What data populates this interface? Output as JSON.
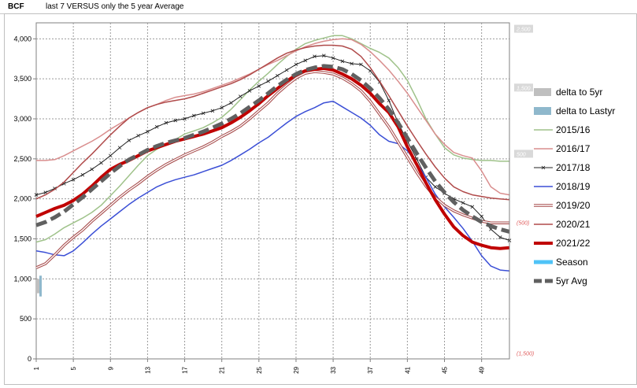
{
  "sheet": {
    "cell_a1": "BCF",
    "cell_b1": "last 7 VERSUS only the 5 year Average"
  },
  "chart_data": {
    "type": "line",
    "y_axis": {
      "ticks": [
        "4,000",
        "3,500",
        "3,000",
        "2,500",
        "2,000",
        "1,500",
        "1,000",
        "500",
        "0"
      ],
      "ylim": [
        0,
        4200
      ]
    },
    "y2_axis": {
      "ticks": [
        "2,500",
        "1,500",
        "500",
        "(500)",
        "(1,500)"
      ]
    },
    "x_axis": {
      "ticks": [
        "1",
        "5",
        "9",
        "13",
        "17",
        "21",
        "25",
        "29",
        "33",
        "37",
        "41",
        "45",
        "49"
      ],
      "xlim": [
        1,
        52
      ]
    },
    "grid": true,
    "legend_position": "right",
    "series": [
      {
        "name": "delta to 5yr",
        "kind": "bar",
        "color": "#bfbfbf",
        "values": [
          [
            1,
            1000
          ],
          [
            1.5,
            1000
          ]
        ]
      },
      {
        "name": "delta to Lastyr",
        "kind": "bar",
        "color": "#8fb8cc",
        "values": [
          [
            1,
            1040
          ],
          [
            1.5,
            780
          ]
        ]
      },
      {
        "name": "2015/16",
        "color": "#9fc28a",
        "width": 1.5,
        "values": [
          1460,
          1490,
          1560,
          1640,
          1700,
          1760,
          1830,
          1920,
          2040,
          2160,
          2290,
          2420,
          2540,
          2620,
          2680,
          2740,
          2810,
          2850,
          2890,
          2950,
          3020,
          3120,
          3240,
          3360,
          3470,
          3570,
          3680,
          3780,
          3870,
          3940,
          3980,
          4010,
          4040,
          4040,
          4000,
          3940,
          3880,
          3830,
          3760,
          3640,
          3480,
          3250,
          3000,
          2810,
          2640,
          2550,
          2510,
          2490,
          2480,
          2480,
          2470,
          2470
        ]
      },
      {
        "name": "2016/17",
        "color": "#d98e8e",
        "width": 1.5,
        "values": [
          2480,
          2480,
          2490,
          2540,
          2600,
          2660,
          2720,
          2790,
          2870,
          2940,
          3010,
          3080,
          3140,
          3180,
          3230,
          3270,
          3290,
          3310,
          3340,
          3380,
          3420,
          3460,
          3510,
          3560,
          3620,
          3680,
          3730,
          3790,
          3850,
          3900,
          3940,
          3970,
          3990,
          4000,
          3990,
          3930,
          3840,
          3730,
          3610,
          3470,
          3320,
          3150,
          2980,
          2810,
          2680,
          2580,
          2540,
          2510,
          2350,
          2150,
          2070,
          2050
        ]
      },
      {
        "name": "2017/18",
        "color": "#202020",
        "width": 1,
        "marker": "x",
        "values": [
          2050,
          2080,
          2130,
          2190,
          2240,
          2300,
          2370,
          2450,
          2540,
          2640,
          2730,
          2790,
          2840,
          2900,
          2950,
          2980,
          3000,
          3040,
          3070,
          3100,
          3140,
          3200,
          3280,
          3350,
          3410,
          3470,
          3540,
          3610,
          3680,
          3730,
          3780,
          3790,
          3760,
          3720,
          3690,
          3680,
          3600,
          3460,
          3230,
          2950,
          2720,
          2500,
          2270,
          2150,
          2070,
          2000,
          1950,
          1900,
          1780,
          1620,
          1520,
          1480
        ]
      },
      {
        "name": "2018/19",
        "color": "#3b4fd6",
        "width": 1.5,
        "values": [
          1350,
          1330,
          1300,
          1290,
          1350,
          1450,
          1560,
          1660,
          1750,
          1840,
          1930,
          2010,
          2080,
          2150,
          2200,
          2240,
          2270,
          2300,
          2340,
          2380,
          2420,
          2480,
          2550,
          2620,
          2700,
          2770,
          2860,
          2950,
          3030,
          3090,
          3140,
          3200,
          3220,
          3150,
          3080,
          3010,
          2920,
          2800,
          2720,
          2690,
          2600,
          2450,
          2270,
          2060,
          1900,
          1770,
          1630,
          1470,
          1290,
          1160,
          1110,
          1100
        ]
      },
      {
        "name": "2019/20",
        "color": "#a54848",
        "width": 1,
        "double": true,
        "values": [
          1140,
          1190,
          1300,
          1420,
          1520,
          1610,
          1720,
          1820,
          1920,
          2020,
          2110,
          2190,
          2280,
          2360,
          2430,
          2490,
          2550,
          2600,
          2650,
          2710,
          2780,
          2840,
          2910,
          3000,
          3100,
          3200,
          3320,
          3420,
          3510,
          3570,
          3590,
          3580,
          3560,
          3510,
          3440,
          3350,
          3220,
          3060,
          2900,
          2710,
          2520,
          2330,
          2160,
          2020,
          1920,
          1850,
          1800,
          1760,
          1720,
          1700,
          1700,
          1700
        ]
      },
      {
        "name": "2020/21",
        "color": "#b04a4a",
        "width": 1.5,
        "values": [
          2000,
          2050,
          2120,
          2210,
          2330,
          2450,
          2560,
          2680,
          2800,
          2910,
          3010,
          3080,
          3140,
          3180,
          3210,
          3230,
          3250,
          3280,
          3320,
          3360,
          3400,
          3440,
          3490,
          3550,
          3620,
          3690,
          3760,
          3820,
          3860,
          3890,
          3910,
          3920,
          3920,
          3910,
          3870,
          3780,
          3640,
          3470,
          3290,
          3100,
          2910,
          2730,
          2560,
          2400,
          2260,
          2150,
          2090,
          2050,
          2030,
          2010,
          2000,
          1990
        ]
      },
      {
        "name": "2021/22",
        "color": "#c00000",
        "width": 4,
        "values": [
          1780,
          1830,
          1880,
          1920,
          1980,
          2060,
          2160,
          2270,
          2370,
          2430,
          2480,
          2540,
          2600,
          2640,
          2680,
          2720,
          2750,
          2780,
          2810,
          2850,
          2890,
          2950,
          3020,
          3100,
          3190,
          3290,
          3380,
          3470,
          3550,
          3600,
          3620,
          3630,
          3610,
          3560,
          3500,
          3420,
          3320,
          3190,
          3080,
          2900,
          2650,
          2430,
          2200,
          1990,
          1810,
          1650,
          1540,
          1460,
          1420,
          1390,
          1380,
          1390
        ]
      },
      {
        "name": "Season",
        "color": "#4fc3f7",
        "width": 5,
        "values": []
      },
      {
        "name": "5yr Avg",
        "color": "#606060",
        "width": 5,
        "dash": true,
        "values": [
          1670,
          1710,
          1770,
          1840,
          1930,
          2020,
          2120,
          2220,
          2320,
          2410,
          2490,
          2550,
          2610,
          2660,
          2700,
          2730,
          2760,
          2800,
          2840,
          2890,
          2940,
          3000,
          3070,
          3150,
          3230,
          3320,
          3410,
          3490,
          3560,
          3610,
          3640,
          3660,
          3650,
          3620,
          3560,
          3480,
          3380,
          3260,
          3120,
          2950,
          2760,
          2570,
          2390,
          2220,
          2080,
          1960,
          1860,
          1780,
          1710,
          1660,
          1620,
          1590
        ]
      }
    ]
  }
}
